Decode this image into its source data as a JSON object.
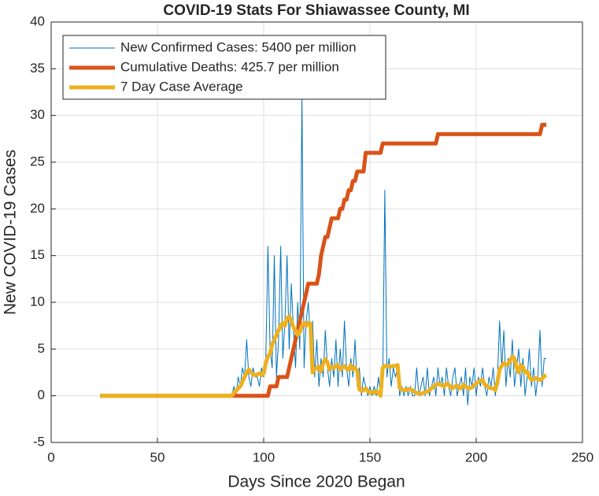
{
  "chart_data": {
    "type": "line",
    "title": "COVID-19 Stats For Shiawassee County, MI",
    "xlabel": "Days Since 2020 Began",
    "ylabel": "New COVID-19 Cases",
    "xlim": [
      0,
      250
    ],
    "xticks": [
      0,
      50,
      100,
      150,
      200,
      250
    ],
    "ylim": [
      -5,
      40
    ],
    "yticks": [
      -5,
      0,
      5,
      10,
      15,
      20,
      25,
      30,
      35,
      40
    ],
    "grid": true,
    "legend": "upper left",
    "x": [
      23,
      24,
      25,
      26,
      27,
      28,
      29,
      30,
      31,
      32,
      33,
      34,
      35,
      36,
      37,
      38,
      39,
      40,
      41,
      42,
      43,
      44,
      45,
      46,
      47,
      48,
      49,
      50,
      51,
      52,
      53,
      54,
      55,
      56,
      57,
      58,
      59,
      60,
      61,
      62,
      63,
      64,
      65,
      66,
      67,
      68,
      69,
      70,
      71,
      72,
      73,
      74,
      75,
      76,
      77,
      78,
      79,
      80,
      81,
      82,
      83,
      84,
      85,
      86,
      87,
      88,
      89,
      90,
      91,
      92,
      93,
      94,
      95,
      96,
      97,
      98,
      99,
      100,
      101,
      102,
      103,
      104,
      105,
      106,
      107,
      108,
      109,
      110,
      111,
      112,
      113,
      114,
      115,
      116,
      117,
      118,
      119,
      120,
      121,
      122,
      123,
      124,
      125,
      126,
      127,
      128,
      129,
      130,
      131,
      132,
      133,
      134,
      135,
      136,
      137,
      138,
      139,
      140,
      141,
      142,
      143,
      144,
      145,
      146,
      147,
      148,
      149,
      150,
      151,
      152,
      153,
      154,
      155,
      156,
      157,
      158,
      159,
      160,
      161,
      162,
      163,
      164,
      165,
      166,
      167,
      168,
      169,
      170,
      171,
      172,
      173,
      174,
      175,
      176,
      177,
      178,
      179,
      180,
      181,
      182,
      183,
      184,
      185,
      186,
      187,
      188,
      189,
      190,
      191,
      192,
      193,
      194,
      195,
      196,
      197,
      198,
      199,
      200,
      201,
      202,
      203,
      204,
      205,
      206,
      207,
      208,
      209,
      210,
      211,
      212,
      213,
      214,
      215,
      216,
      217,
      218,
      219,
      220,
      221,
      222,
      223,
      224,
      225,
      226,
      227,
      228,
      229,
      230,
      231,
      232,
      233
    ],
    "series": [
      {
        "name": "New Confirmed Cases: 5400 per million",
        "color": "#0072bd",
        "width": 1,
        "values": [
          0,
          0,
          0,
          0,
          0,
          0,
          0,
          0,
          0,
          0,
          0,
          0,
          0,
          0,
          0,
          0,
          0,
          0,
          0,
          0,
          0,
          0,
          0,
          0,
          0,
          0,
          0,
          0,
          0,
          0,
          0,
          0,
          0,
          0,
          0,
          0,
          0,
          0,
          0,
          0,
          0,
          0,
          0,
          0,
          0,
          0,
          0,
          0,
          0,
          0,
          0,
          0,
          0,
          0,
          0,
          0,
          0,
          0,
          0,
          0,
          0,
          0,
          0,
          1,
          0,
          2,
          1,
          3,
          2,
          6,
          2,
          1,
          3,
          2,
          2,
          1,
          3,
          2,
          4,
          16,
          5,
          3,
          15,
          2,
          6,
          16,
          4,
          8,
          15,
          5,
          12,
          7,
          3,
          10,
          5,
          32,
          3,
          8,
          10,
          6,
          8,
          2,
          6,
          1,
          4,
          2,
          7,
          3,
          1,
          4,
          2,
          6,
          1,
          5,
          2,
          8,
          3,
          1,
          4,
          2,
          6,
          1,
          3,
          0,
          2,
          1,
          0,
          1,
          0,
          1,
          0,
          2,
          0,
          1,
          22,
          2,
          4,
          1,
          3,
          2,
          3,
          0,
          1,
          0,
          1,
          0,
          1,
          0,
          0,
          3,
          0,
          1,
          2,
          0,
          3,
          0,
          1,
          2,
          0,
          3,
          1,
          2,
          0,
          3,
          1,
          0,
          2,
          3,
          0,
          1,
          2,
          0,
          3,
          -1,
          2,
          1,
          3,
          0,
          2,
          1,
          3,
          1,
          0,
          2,
          1,
          3,
          0,
          2,
          8,
          3,
          7,
          1,
          4,
          2,
          6,
          1,
          3,
          5,
          1,
          4,
          0,
          2,
          5,
          1,
          3,
          0,
          2,
          7,
          1,
          4,
          4
        ]
      },
      {
        "name": "Cumulative Deaths: 425.7 per million",
        "color": "#d95319",
        "width": 5,
        "values": [
          0,
          0,
          0,
          0,
          0,
          0,
          0,
          0,
          0,
          0,
          0,
          0,
          0,
          0,
          0,
          0,
          0,
          0,
          0,
          0,
          0,
          0,
          0,
          0,
          0,
          0,
          0,
          0,
          0,
          0,
          0,
          0,
          0,
          0,
          0,
          0,
          0,
          0,
          0,
          0,
          0,
          0,
          0,
          0,
          0,
          0,
          0,
          0,
          0,
          0,
          0,
          0,
          0,
          0,
          0,
          0,
          0,
          0,
          0,
          0,
          0,
          0,
          0,
          0,
          0,
          0,
          0,
          0,
          0,
          0,
          0,
          0,
          0,
          0,
          0,
          0,
          0,
          0,
          0,
          0,
          1,
          1,
          1,
          1,
          2,
          2,
          2,
          2,
          2,
          3,
          4,
          5,
          6,
          7,
          8,
          9,
          10,
          11,
          12,
          12,
          12,
          12,
          12,
          13,
          15,
          16,
          17,
          17,
          18,
          19,
          19,
          19,
          19,
          20,
          20,
          21,
          21,
          22,
          22,
          23,
          23,
          24,
          24,
          24,
          24,
          26,
          26,
          26,
          26,
          26,
          26,
          26,
          26,
          27,
          27,
          27,
          27,
          27,
          27,
          27,
          27,
          27,
          27,
          27,
          27,
          27,
          27,
          27,
          27,
          27,
          27,
          27,
          27,
          27,
          27,
          27,
          27,
          27,
          27,
          28,
          28,
          28,
          28,
          28,
          28,
          28,
          28,
          28,
          28,
          28,
          28,
          28,
          28,
          28,
          28,
          28,
          28,
          28,
          28,
          28,
          28,
          28,
          28,
          28,
          28,
          28,
          28,
          28,
          28,
          28,
          28,
          28,
          28,
          28,
          28,
          28,
          28,
          28,
          28,
          28,
          28,
          28,
          28,
          28,
          28,
          28,
          28,
          28,
          29,
          29,
          29
        ]
      },
      {
        "name": "7 Day Case Average",
        "color": "#edb120",
        "width": 5,
        "values": [
          0,
          0,
          0,
          0,
          0,
          0,
          0,
          0,
          0,
          0,
          0,
          0,
          0,
          0,
          0,
          0,
          0,
          0,
          0,
          0,
          0,
          0,
          0,
          0,
          0,
          0,
          0,
          0,
          0,
          0,
          0,
          0,
          0,
          0,
          0,
          0,
          0,
          0,
          0,
          0,
          0,
          0,
          0,
          0,
          0,
          0,
          0,
          0,
          0,
          0,
          0,
          0,
          0,
          0,
          0,
          0,
          0,
          0,
          0,
          0,
          0,
          0,
          0,
          0.3,
          0.5,
          0.8,
          1,
          1.5,
          2,
          2.5,
          2.8,
          2.5,
          2.3,
          2.2,
          2.3,
          2.4,
          2.2,
          2.4,
          3.5,
          4.2,
          4.5,
          5.5,
          6,
          6.5,
          7,
          7.5,
          7.8,
          7.5,
          8.3,
          8.5,
          8,
          7.3,
          7,
          6.5,
          6.8,
          7.5,
          7.8,
          7.5,
          7.8,
          7.7,
          2.5,
          2.8,
          3,
          3.1,
          2.6,
          3.5,
          3.9,
          3.6,
          2.8,
          3.1,
          3,
          3.2,
          3.3,
          2.8,
          3,
          3.2,
          2.9,
          2.8,
          3.3,
          2.8,
          3,
          2.7,
          0.7,
          0.5,
          0.6,
          0.8,
          0.5,
          0.3,
          0.4,
          0.3,
          0.5,
          0.3,
          0,
          3,
          3.2,
          3.1,
          3.2,
          3.1,
          3.2,
          3.2,
          3.3,
          0.8,
          0.7,
          0.6,
          0.6,
          0.7,
          0.7,
          0.6,
          0.4,
          0.3,
          0.3,
          0.2,
          0.3,
          0.4,
          0.4,
          0.6,
          0.8,
          1,
          1.1,
          1.3,
          1.2,
          1.1,
          1,
          1.3,
          1.2,
          0.9,
          0.8,
          1,
          1.1,
          0.8,
          0.8,
          1.2,
          1,
          0.8,
          0.8,
          0.9,
          1.1,
          1.3,
          1.5,
          1.6,
          1.7,
          1.2,
          1,
          0.9,
          0.8,
          0.8,
          0.6,
          1.5,
          2.8,
          3.2,
          3.5,
          3.3,
          3.4,
          3.8,
          4.2,
          4,
          3,
          2.5,
          3.3,
          3.1,
          2.5,
          2.6,
          2,
          1.7,
          1.8,
          1.9,
          1.8,
          1.7,
          1.8,
          2.1,
          2.2
        ]
      }
    ]
  }
}
